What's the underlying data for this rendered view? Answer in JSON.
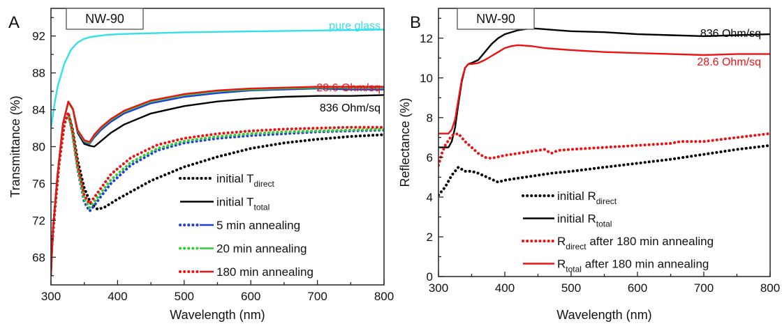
{
  "colors": {
    "black": "#000000",
    "blue": "#1f3fd8",
    "green": "#33cc33",
    "red": "#ee1111",
    "cyan": "#33e0e8"
  },
  "chart_data": [
    {
      "type": "line",
      "panel_label": "A",
      "sample_label": "NW-90",
      "xlabel": "Wavelength (nm)",
      "ylabel": "Transmittance (%)",
      "xlim": [
        300,
        800
      ],
      "ylim": [
        65,
        95
      ],
      "xticks": [
        300,
        400,
        500,
        600,
        700,
        800
      ],
      "yticks": [
        68,
        72,
        76,
        80,
        84,
        88,
        92
      ],
      "annotations": {
        "pure_glass": "pure glass",
        "red_sheet": "28.6 Ohm/sq",
        "black_sheet": "836 Ohm/sq"
      },
      "legend": [
        {
          "pre": "initial T",
          "sub": "direct",
          "post": "",
          "style": "dotted",
          "color": "#000000"
        },
        {
          "pre": "initial T",
          "sub": "total",
          "post": "",
          "style": "solid",
          "color": "#000000"
        },
        {
          "pre": "5 min annealing",
          "sub": "",
          "post": "",
          "style": "dotted+solid",
          "color": "#1f3fd8"
        },
        {
          "pre": "20 min annealing",
          "sub": "",
          "post": "",
          "style": "dotted+solid",
          "color": "#33cc33"
        },
        {
          "pre": "180 min annealing",
          "sub": "",
          "post": "",
          "style": "dotted+solid",
          "color": "#ee1111"
        }
      ],
      "series": [
        {
          "color": "#33e0e8",
          "style": "solid",
          "x": [
            300,
            305,
            310,
            320,
            330,
            340,
            350,
            360,
            380,
            400,
            450,
            500,
            600,
            700,
            800
          ],
          "y": [
            82,
            84.5,
            86.5,
            89,
            90.5,
            91.3,
            91.7,
            91.9,
            92.1,
            92.2,
            92.3,
            92.4,
            92.5,
            92.6,
            92.7
          ]
        },
        {
          "color": "#000000",
          "style": "solid",
          "x": [
            300,
            303,
            310,
            318,
            326,
            333,
            340,
            350,
            358,
            365,
            375,
            390,
            410,
            450,
            500,
            550,
            600,
            650,
            700,
            750,
            800
          ],
          "y": [
            66,
            71,
            77,
            82.5,
            84.8,
            84,
            81.5,
            80.3,
            80.1,
            80,
            80.6,
            81.5,
            82.4,
            83.6,
            84.4,
            84.9,
            85.2,
            85.4,
            85.5,
            85.5,
            85.6
          ]
        },
        {
          "color": "#1f3fd8",
          "style": "solid",
          "x": [
            300,
            303,
            310,
            318,
            326,
            333,
            340,
            350,
            358,
            365,
            375,
            390,
            410,
            450,
            500,
            550,
            600,
            650,
            700,
            750,
            800
          ],
          "y": [
            66,
            71,
            77,
            82.5,
            84.8,
            84,
            81.6,
            80.5,
            80.3,
            81,
            81.8,
            82.7,
            83.6,
            84.7,
            85.4,
            85.8,
            86.1,
            86.2,
            86.3,
            86.2,
            86.2
          ]
        },
        {
          "color": "#33cc33",
          "style": "solid",
          "x": [
            300,
            303,
            310,
            318,
            326,
            333,
            340,
            350,
            358,
            365,
            375,
            390,
            410,
            450,
            500,
            550,
            600,
            650,
            700,
            750,
            800
          ],
          "y": [
            66,
            71,
            77,
            82.5,
            84.8,
            84,
            81.7,
            80.6,
            80.4,
            81.2,
            82,
            82.9,
            83.8,
            84.9,
            85.6,
            86,
            86.2,
            86.3,
            86.4,
            86.4,
            86.4
          ]
        },
        {
          "color": "#ee1111",
          "style": "solid",
          "x": [
            300,
            303,
            310,
            318,
            326,
            333,
            340,
            350,
            358,
            365,
            375,
            390,
            410,
            450,
            500,
            550,
            600,
            650,
            700,
            750,
            800
          ],
          "y": [
            66,
            71,
            77,
            82.5,
            84.9,
            84.1,
            81.8,
            80.7,
            80.5,
            81.3,
            82.1,
            83,
            83.9,
            85,
            85.7,
            86.1,
            86.3,
            86.4,
            86.5,
            86.5,
            86.5
          ]
        },
        {
          "color": "#000000",
          "style": "dotted",
          "x": [
            300,
            305,
            312,
            320,
            326,
            332,
            340,
            350,
            360,
            370,
            380,
            400,
            450,
            500,
            550,
            600,
            650,
            700,
            750,
            800
          ],
          "y": [
            68,
            72.5,
            78,
            82.4,
            83.6,
            82,
            78.5,
            75.5,
            73.8,
            73.2,
            73.4,
            74.3,
            76.3,
            77.8,
            78.9,
            79.8,
            80.4,
            80.8,
            81.1,
            81.3
          ]
        },
        {
          "color": "#1f3fd8",
          "style": "dotted",
          "x": [
            300,
            305,
            312,
            320,
            326,
            332,
            340,
            350,
            358,
            365,
            375,
            390,
            420,
            460,
            500,
            550,
            600,
            650,
            700,
            750,
            800
          ],
          "y": [
            68,
            72.5,
            78,
            82.4,
            83.6,
            81.5,
            77.5,
            74,
            73,
            73.6,
            74.6,
            76,
            78,
            79.6,
            80.4,
            80.9,
            81.2,
            81.4,
            81.6,
            81.7,
            81.8
          ]
        },
        {
          "color": "#33cc33",
          "style": "dotted",
          "x": [
            300,
            305,
            312,
            320,
            326,
            332,
            340,
            350,
            358,
            365,
            375,
            390,
            420,
            460,
            500,
            550,
            600,
            650,
            700,
            750,
            800
          ],
          "y": [
            68,
            72.5,
            78,
            82.4,
            83.6,
            81.6,
            77.7,
            74.3,
            73.4,
            74,
            75,
            76.4,
            78.3,
            79.8,
            80.6,
            81.1,
            81.4,
            81.6,
            81.7,
            81.8,
            81.9
          ]
        },
        {
          "color": "#ee1111",
          "style": "dotted",
          "x": [
            300,
            305,
            312,
            320,
            326,
            332,
            340,
            350,
            358,
            365,
            375,
            390,
            420,
            460,
            500,
            550,
            600,
            650,
            700,
            750,
            800
          ],
          "y": [
            68,
            72.5,
            78,
            82.4,
            83.7,
            81.8,
            78,
            74.7,
            73.8,
            74.5,
            75.5,
            77,
            78.8,
            80.2,
            80.9,
            81.4,
            81.7,
            81.9,
            82,
            82.1,
            82.1
          ]
        }
      ]
    },
    {
      "type": "line",
      "panel_label": "B",
      "sample_label": "NW-90",
      "xlabel": "Wavelength (nm)",
      "ylabel": "Reflectance (%)",
      "xlim": [
        300,
        800
      ],
      "ylim": [
        0,
        13.5
      ],
      "xticks": [
        300,
        400,
        500,
        600,
        700,
        800
      ],
      "yticks": [
        0,
        2,
        4,
        6,
        8,
        10,
        12
      ],
      "annotations": {
        "black_sheet": "836 Ohm/sq",
        "red_sheet": "28.6 Ohm/sq"
      },
      "legend": [
        {
          "pre": "initial R",
          "sub": "direct",
          "post": "",
          "style": "dotted",
          "color": "#000000"
        },
        {
          "pre": "initial R",
          "sub": "total",
          "post": "",
          "style": "solid",
          "color": "#000000"
        },
        {
          "pre": "R",
          "sub": "direct",
          "post": " after 180 min annealing",
          "style": "dotted",
          "color": "#ee1111"
        },
        {
          "pre": "R",
          "sub": "total",
          "post": " after 180 min annealing",
          "style": "solid",
          "color": "#ee1111"
        }
      ],
      "series": [
        {
          "color": "#000000",
          "style": "solid",
          "x": [
            300,
            310,
            315,
            320,
            325,
            330,
            335,
            340,
            345,
            350,
            360,
            370,
            380,
            390,
            400,
            420,
            440,
            460,
            480,
            500,
            550,
            600,
            650,
            700,
            750,
            800
          ],
          "y": [
            6.5,
            6.5,
            6.5,
            6.8,
            7.5,
            8.7,
            9.8,
            10.5,
            10.7,
            10.75,
            10.9,
            11.3,
            11.7,
            12,
            12.2,
            12.4,
            12.5,
            12.45,
            12.4,
            12.35,
            12.3,
            12.2,
            12.15,
            12.1,
            12.15,
            12.2
          ]
        },
        {
          "color": "#ee1111",
          "style": "solid",
          "x": [
            300,
            310,
            315,
            320,
            325,
            330,
            335,
            340,
            345,
            350,
            360,
            370,
            380,
            390,
            400,
            410,
            420,
            440,
            460,
            480,
            500,
            550,
            600,
            650,
            700,
            750,
            800
          ],
          "y": [
            7.2,
            7.2,
            7.2,
            7.4,
            7.9,
            8.9,
            9.9,
            10.5,
            10.7,
            10.7,
            10.75,
            10.9,
            11.1,
            11.3,
            11.5,
            11.6,
            11.65,
            11.6,
            11.5,
            11.45,
            11.4,
            11.3,
            11.25,
            11.2,
            11.15,
            11.2,
            11.2
          ]
        },
        {
          "color": "#000000",
          "style": "dotted",
          "x": [
            300,
            310,
            320,
            330,
            340,
            350,
            360,
            370,
            380,
            390,
            400,
            420,
            450,
            470,
            500,
            550,
            600,
            650,
            700,
            750,
            800
          ],
          "y": [
            4.1,
            4.5,
            5.1,
            5.5,
            5.3,
            5.3,
            5.2,
            5.05,
            4.9,
            4.75,
            4.85,
            4.95,
            5.1,
            5.2,
            5.3,
            5.5,
            5.7,
            5.9,
            6.15,
            6.4,
            6.6
          ]
        },
        {
          "color": "#ee1111",
          "style": "dotted",
          "x": [
            300,
            305,
            310,
            320,
            330,
            340,
            350,
            360,
            370,
            380,
            400,
            420,
            440,
            460,
            470,
            480,
            500,
            550,
            600,
            650,
            665,
            700,
            750,
            800
          ],
          "y": [
            5.6,
            6.2,
            6.6,
            7.1,
            7.2,
            6.8,
            6.5,
            6.2,
            6,
            5.95,
            6.1,
            6.2,
            6.3,
            6.4,
            6.2,
            6.35,
            6.4,
            6.5,
            6.6,
            6.7,
            6.8,
            6.8,
            7,
            7.2
          ]
        }
      ]
    }
  ]
}
